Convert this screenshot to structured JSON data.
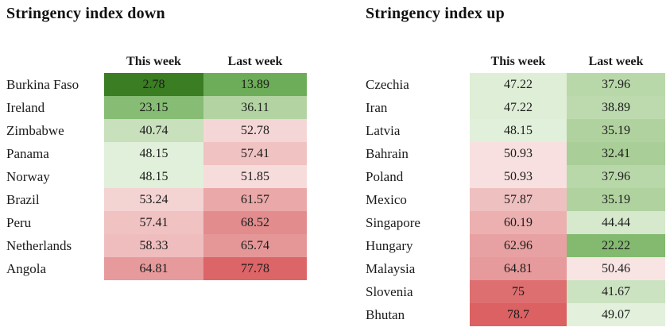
{
  "page": {
    "background": "#ffffff"
  },
  "color_scale": {
    "low_green": "#3a7d22",
    "neutral": "#ffffff",
    "high_red": "#db6163",
    "midpoint": 50
  },
  "tables": [
    {
      "title": "Stringency index down",
      "columns": [
        "This week",
        "Last week"
      ],
      "rows": [
        {
          "label": "Burkina Faso",
          "this_week": "2.78",
          "this_week_color": "#3a7d22",
          "last_week": "13.89",
          "last_week_color": "#6dac58"
        },
        {
          "label": "Ireland",
          "this_week": "23.15",
          "this_week_color": "#86bc74",
          "last_week": "36.11",
          "last_week_color": "#b3d4a2"
        },
        {
          "label": "Zimbabwe",
          "this_week": "40.74",
          "this_week_color": "#c8e0bc",
          "last_week": "52.78",
          "last_week_color": "#f5d6d6"
        },
        {
          "label": "Panama",
          "this_week": "48.15",
          "this_week_color": "#e1f0da",
          "last_week": "57.41",
          "last_week_color": "#f0c2c2"
        },
        {
          "label": "Norway",
          "this_week": "48.15",
          "this_week_color": "#e1f0da",
          "last_week": "51.85",
          "last_week_color": "#f7dcdc"
        },
        {
          "label": "Brazil",
          "this_week": "53.24",
          "this_week_color": "#f4d3d3",
          "last_week": "61.57",
          "last_week_color": "#eaa8a8"
        },
        {
          "label": "Peru",
          "this_week": "57.41",
          "this_week_color": "#f0c2c2",
          "last_week": "68.52",
          "last_week_color": "#e28c8d"
        },
        {
          "label": "Netherlands",
          "this_week": "58.33",
          "this_week_color": "#efbdbd",
          "last_week": "65.74",
          "last_week_color": "#e59798"
        },
        {
          "label": "Angola",
          "this_week": "64.81",
          "this_week_color": "#e69a9b",
          "last_week": "77.78",
          "last_week_color": "#dc6567"
        }
      ]
    },
    {
      "title": "Stringency index up",
      "columns": [
        "This week",
        "Last week"
      ],
      "rows": [
        {
          "label": "Czechia",
          "this_week": "47.22",
          "this_week_color": "#dfeed7",
          "last_week": "37.96",
          "last_week_color": "#b9d8aa"
        },
        {
          "label": "Iran",
          "this_week": "47.22",
          "this_week_color": "#dfeed7",
          "last_week": "38.89",
          "last_week_color": "#bcdaae"
        },
        {
          "label": "Latvia",
          "this_week": "48.15",
          "this_week_color": "#e1f0da",
          "last_week": "35.19",
          "last_week_color": "#b0d29f"
        },
        {
          "label": "Bahrain",
          "this_week": "50.93",
          "this_week_color": "#f8e0e0",
          "last_week": "32.41",
          "last_week_color": "#a9ce97"
        },
        {
          "label": "Poland",
          "this_week": "50.93",
          "this_week_color": "#f8e0e0",
          "last_week": "37.96",
          "last_week_color": "#b9d8aa"
        },
        {
          "label": "Mexico",
          "this_week": "57.87",
          "this_week_color": "#efc0c0",
          "last_week": "35.19",
          "last_week_color": "#b0d29f"
        },
        {
          "label": "Singapore",
          "this_week": "60.19",
          "this_week_color": "#ecb0b0",
          "last_week": "44.44",
          "last_week_color": "#d6e9cd"
        },
        {
          "label": "Hungary",
          "this_week": "62.96",
          "this_week_color": "#e8a1a2",
          "last_week": "22.22",
          "last_week_color": "#83ba70"
        },
        {
          "label": "Malaysia",
          "this_week": "64.81",
          "this_week_color": "#e69a9b",
          "last_week": "50.46",
          "last_week_color": "#f9e4e4"
        },
        {
          "label": "Slovenia",
          "this_week": "75",
          "this_week_color": "#dd6f71",
          "last_week": "41.67",
          "last_week_color": "#cce3c1"
        },
        {
          "label": "Bhutan",
          "this_week": "78.7",
          "this_week_color": "#db6163",
          "last_week": "49.07",
          "last_week_color": "#e3f1dc"
        }
      ]
    }
  ],
  "chart_data": [
    {
      "type": "heatmap",
      "title": "Stringency index down",
      "columns": [
        "This week",
        "Last week"
      ],
      "rows": [
        "Burkina Faso",
        "Ireland",
        "Zimbabwe",
        "Panama",
        "Norway",
        "Brazil",
        "Peru",
        "Netherlands",
        "Angola"
      ],
      "values": [
        [
          2.78,
          13.89
        ],
        [
          23.15,
          36.11
        ],
        [
          40.74,
          52.78
        ],
        [
          48.15,
          57.41
        ],
        [
          48.15,
          51.85
        ],
        [
          53.24,
          61.57
        ],
        [
          57.41,
          68.52
        ],
        [
          58.33,
          65.74
        ],
        [
          64.81,
          77.78
        ]
      ],
      "value_range": [
        0,
        100
      ],
      "color_scale": "green (low) to white (~50) to red (high)"
    },
    {
      "type": "heatmap",
      "title": "Stringency index up",
      "columns": [
        "This week",
        "Last week"
      ],
      "rows": [
        "Czechia",
        "Iran",
        "Latvia",
        "Bahrain",
        "Poland",
        "Mexico",
        "Singapore",
        "Hungary",
        "Malaysia",
        "Slovenia",
        "Bhutan"
      ],
      "values": [
        [
          47.22,
          37.96
        ],
        [
          47.22,
          38.89
        ],
        [
          48.15,
          35.19
        ],
        [
          50.93,
          32.41
        ],
        [
          50.93,
          37.96
        ],
        [
          57.87,
          35.19
        ],
        [
          60.19,
          44.44
        ],
        [
          62.96,
          22.22
        ],
        [
          64.81,
          50.46
        ],
        [
          75,
          41.67
        ],
        [
          78.7,
          49.07
        ]
      ],
      "value_range": [
        0,
        100
      ],
      "color_scale": "green (low) to white (~50) to red (high)"
    }
  ]
}
